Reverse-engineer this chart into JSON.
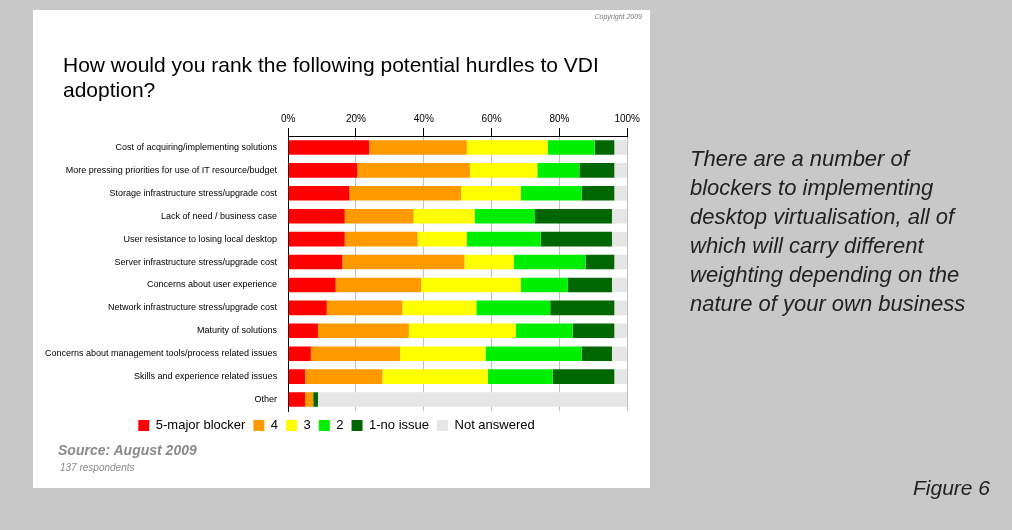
{
  "chart_data": {
    "type": "bar",
    "orientation": "horizontal",
    "stacked": true,
    "title": "How would you rank the following potential hurdles to VDI adoption?",
    "categories": [
      "Cost of acquiring/implementing solutions",
      "More pressing priorities for use of IT resource/budget",
      "Storage infrastructure stress/upgrade cost",
      "Lack of need / business case",
      "User resistance to losing local desktop",
      "Server infrastructure stress/upgrade cost",
      "Concerns about user experience",
      "Network infrastructure stress/upgrade cost",
      "Maturity of solutions",
      "Concerns about management tools/process related issues",
      "Skills and experience related issues",
      "Other"
    ],
    "series": [
      {
        "name": "5-major blocker",
        "color": "#ff0000",
        "values": [
          23.9,
          20.4,
          18.1,
          16.7,
          16.7,
          16.0,
          14.0,
          11.4,
          8.8,
          6.7,
          5.0,
          5.0
        ]
      },
      {
        "name": "4",
        "color": "#ff9900",
        "values": [
          28.8,
          33.2,
          32.9,
          20.3,
          21.5,
          36.0,
          25.2,
          22.3,
          26.8,
          26.3,
          22.8,
          2.4
        ]
      },
      {
        "name": "3",
        "color": "#ffff00",
        "values": [
          23.9,
          19.9,
          17.6,
          18.0,
          14.5,
          14.6,
          29.4,
          21.8,
          31.6,
          25.2,
          31.1,
          0
        ]
      },
      {
        "name": "2",
        "color": "#00ee00",
        "values": [
          13.8,
          12.4,
          18.0,
          17.8,
          21.8,
          21.1,
          13.9,
          21.8,
          16.7,
          28.4,
          19.1,
          0
        ]
      },
      {
        "name": "1-no issue",
        "color": "#006600",
        "values": [
          5.8,
          10.3,
          9.6,
          22.7,
          21.0,
          8.5,
          13.0,
          18.9,
          12.3,
          8.9,
          18.2,
          1.4
        ]
      },
      {
        "name": "Not answered",
        "color": "#e6e6e6",
        "values": [
          3.8,
          3.8,
          3.8,
          4.5,
          4.5,
          3.8,
          4.5,
          3.8,
          3.8,
          4.5,
          3.8,
          91.2
        ]
      }
    ],
    "xlim": [
      0,
      100
    ],
    "xticks": [
      {
        "value": 0,
        "label": "0%"
      },
      {
        "value": 20,
        "label": "20%"
      },
      {
        "value": 40,
        "label": "40%"
      },
      {
        "value": 60,
        "label": "60%"
      },
      {
        "value": 80,
        "label": "80%"
      },
      {
        "value": 100,
        "label": "100%"
      }
    ],
    "grid": "x",
    "legend": "bottom",
    "annotations": [
      "Copyright 2009",
      "Source: August 2009",
      "137 respondents",
      "There are a number of blockers to implementing desktop virtualisation, all of which will carry different weighting depending on the nature of your own business",
      "Figure 6"
    ]
  }
}
